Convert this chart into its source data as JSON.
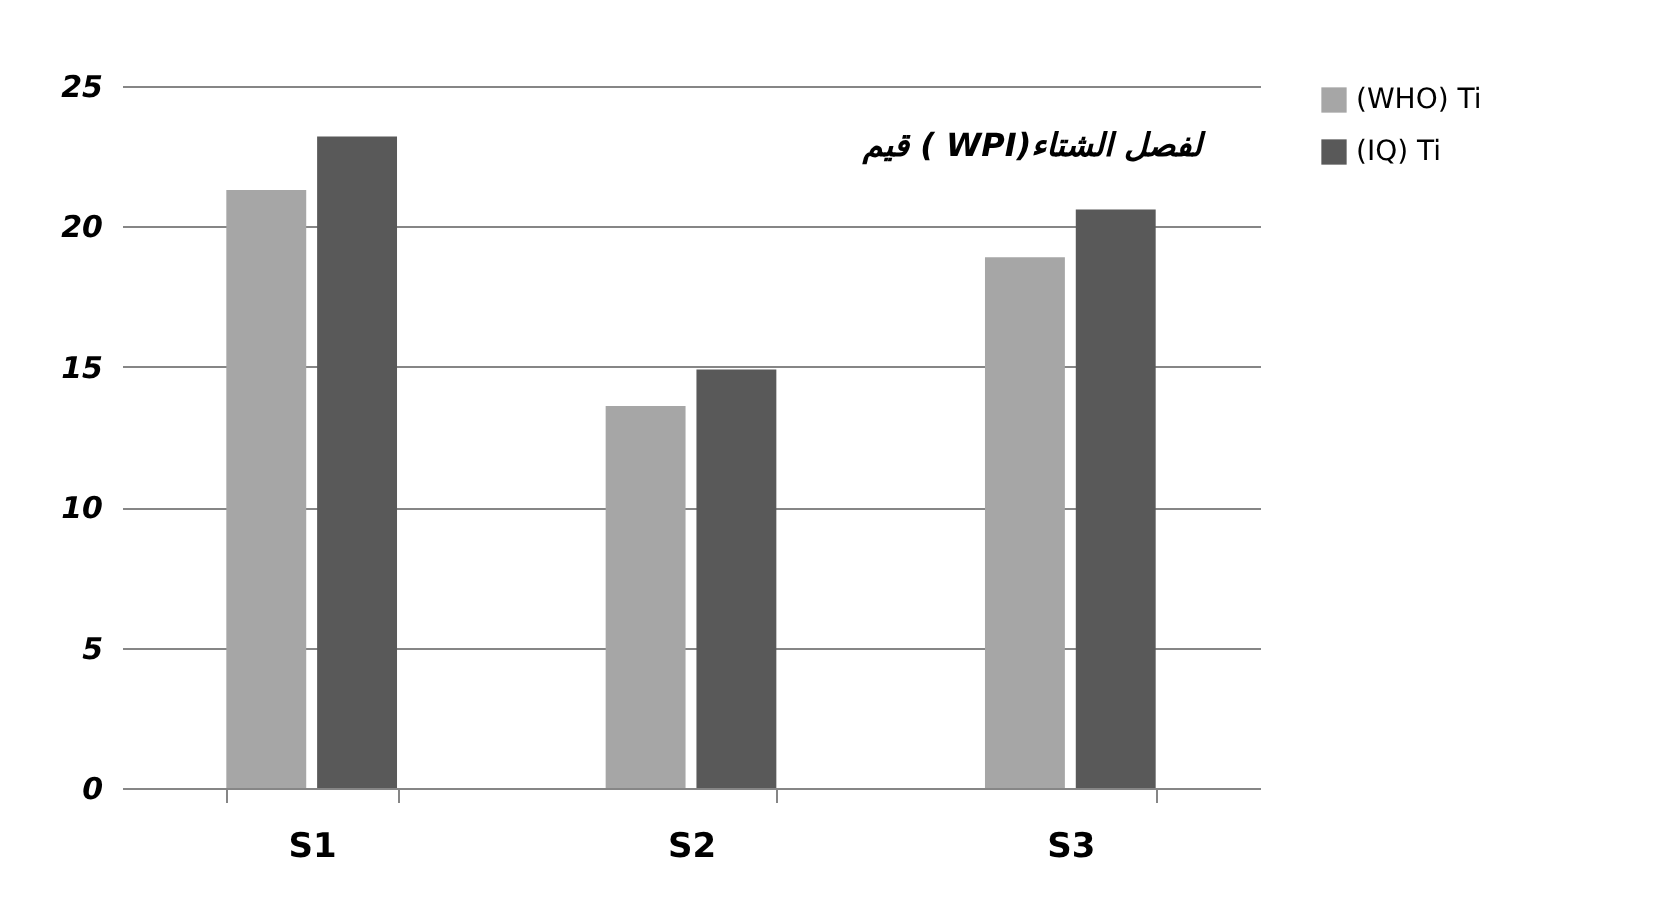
{
  "chart_data": {
    "type": "bar",
    "title": "قيم ( WPI)لفصل الشتاء",
    "categories": [
      "S1",
      "S2",
      "S3"
    ],
    "series": [
      {
        "name": "(WHO) Ti",
        "color": "#a6a6a6",
        "values": [
          21.3,
          13.6,
          18.9
        ]
      },
      {
        "name": "(IQ) Ti",
        "color": "#595959",
        "values": [
          23.2,
          14.9,
          20.6
        ]
      }
    ],
    "ylim": [
      0,
      25
    ],
    "yticks": [
      0,
      5,
      10,
      15,
      20,
      25
    ],
    "grid": "y",
    "legend": "right"
  }
}
